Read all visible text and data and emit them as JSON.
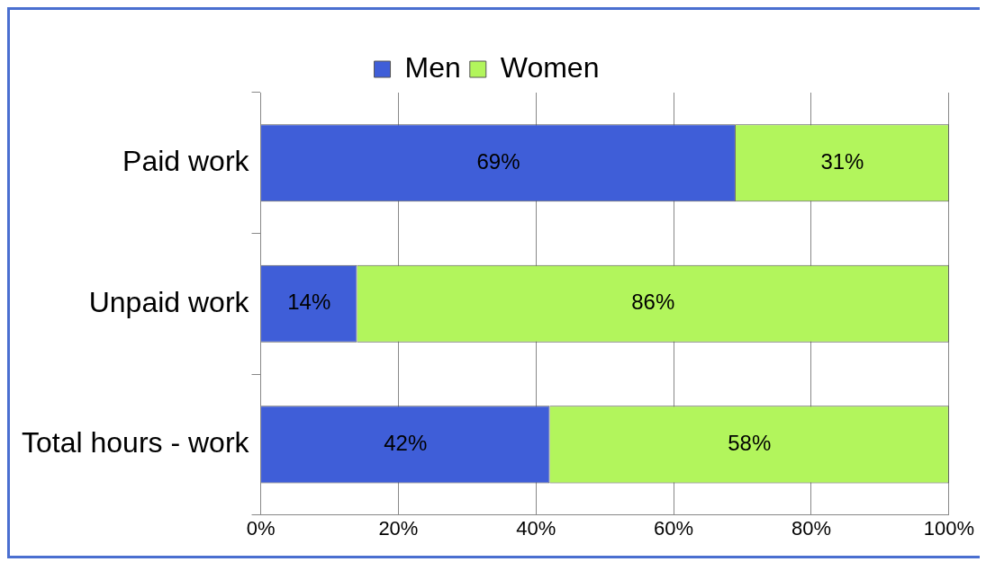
{
  "chart_data": {
    "type": "bar",
    "orientation": "horizontal",
    "stacked": true,
    "categories": [
      "Paid work",
      "Unpaid work",
      "Total hours - work"
    ],
    "series": [
      {
        "name": "Men",
        "color": "#3f5ed8",
        "values": [
          69,
          14,
          42
        ],
        "value_labels": [
          "69%",
          "14%",
          "42%"
        ]
      },
      {
        "name": "Women",
        "color": "#b2f55c",
        "values": [
          31,
          86,
          58
        ],
        "value_labels": [
          "31%",
          "86%",
          "58%"
        ]
      }
    ],
    "xlim": [
      0,
      100
    ],
    "xticks": [
      {
        "value": 0,
        "label": "0%"
      },
      {
        "value": 20,
        "label": "20%"
      },
      {
        "value": 40,
        "label": "40%"
      },
      {
        "value": 60,
        "label": "60%"
      },
      {
        "value": 80,
        "label": "80%"
      },
      {
        "value": 100,
        "label": "100%"
      }
    ],
    "grid": "x",
    "legend": "top"
  }
}
